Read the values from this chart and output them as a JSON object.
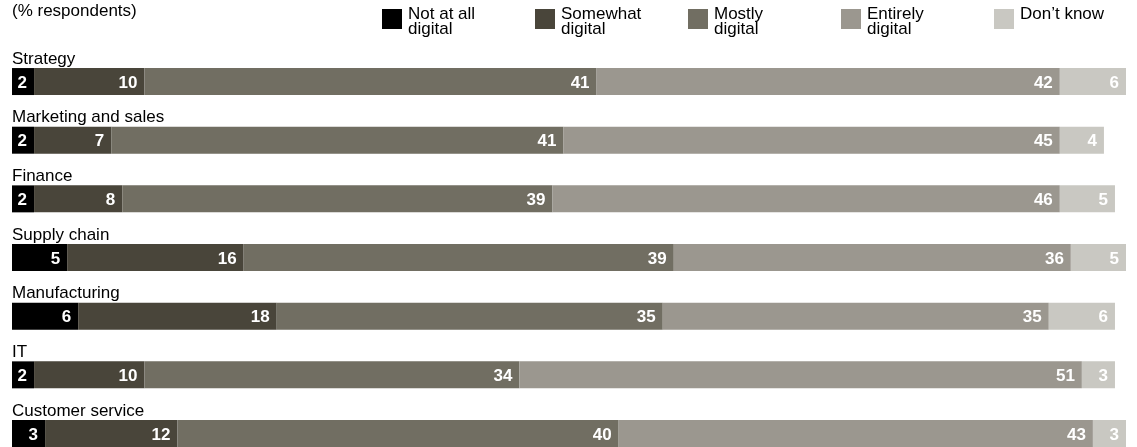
{
  "chart_data": {
    "type": "bar",
    "orientation": "horizontal",
    "stacked": true,
    "data_labels": true,
    "legend": "top right",
    "tick_labels": "y",
    "annotations": [
      "(% respondents)"
    ],
    "categories": [
      "Strategy",
      "Marketing and sales",
      "Finance",
      "Supply chain",
      "Manufacturing",
      "IT",
      "Customer service"
    ],
    "series": [
      {
        "name": "Not at all digital",
        "color": "#000000",
        "values": [
          2,
          2,
          2,
          5,
          6,
          2,
          3
        ]
      },
      {
        "name": "Somewhat digital",
        "color": "#49453a",
        "values": [
          10,
          7,
          8,
          16,
          18,
          10,
          12
        ]
      },
      {
        "name": "Mostly digital",
        "color": "#716e62",
        "values": [
          41,
          41,
          39,
          39,
          35,
          34,
          40
        ]
      },
      {
        "name": "Entirely digital",
        "color": "#9b978f",
        "values": [
          42,
          45,
          46,
          36,
          35,
          51,
          43
        ]
      },
      {
        "name": "Don’t know",
        "color": "#c9c8c2",
        "values": [
          6,
          4,
          5,
          5,
          6,
          3,
          3
        ]
      }
    ]
  }
}
